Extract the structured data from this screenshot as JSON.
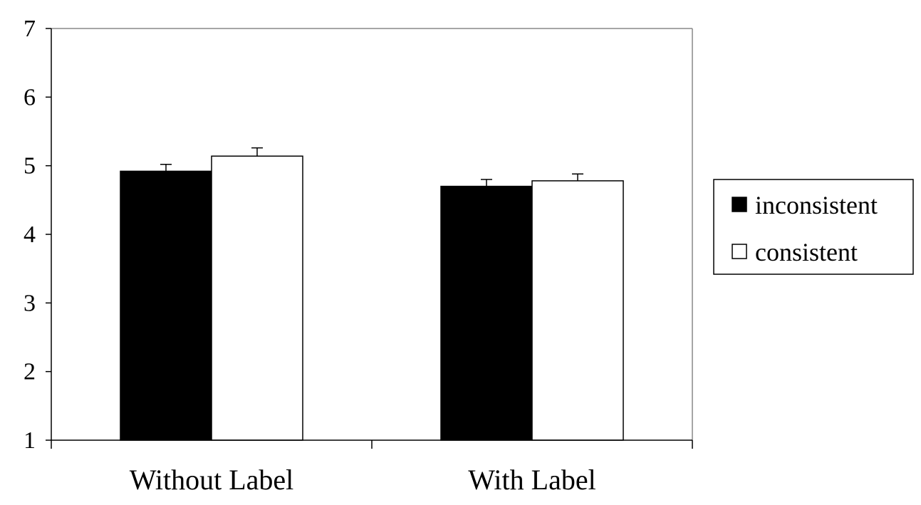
{
  "chart_data": {
    "type": "bar",
    "title": "",
    "xlabel": "",
    "ylabel": "",
    "categories": [
      "Without Label",
      "With Label"
    ],
    "ylim": [
      1,
      7
    ],
    "yticks": [
      1,
      2,
      3,
      4,
      5,
      6,
      7
    ],
    "grid": false,
    "legend_position": "right",
    "series": [
      {
        "name": "inconsistent",
        "values": [
          4.92,
          4.7
        ],
        "errors": [
          0.1,
          0.1
        ],
        "color": "#000000"
      },
      {
        "name": "consistent",
        "values": [
          5.14,
          4.78
        ],
        "errors": [
          0.12,
          0.1
        ],
        "color": "#ffffff"
      }
    ]
  }
}
